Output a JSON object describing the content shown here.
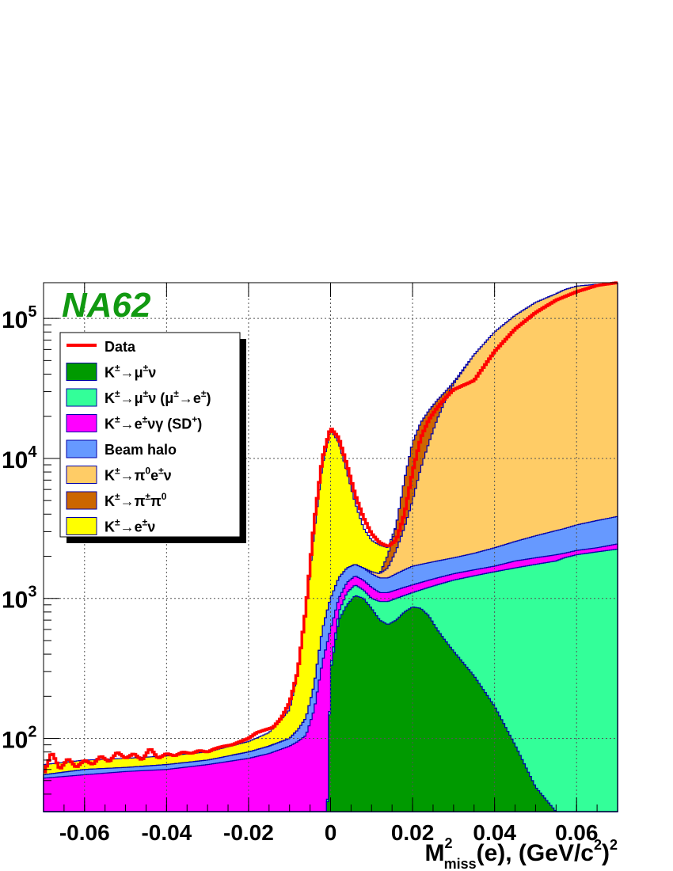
{
  "experiment": "NA62",
  "colors": {
    "data": "#ff0000",
    "kmu2": "#009a00",
    "kmu2_decay": "#33ff99",
    "ke2g_sd": "#ff00ff",
    "halo": "#6699ff",
    "ke3": "#ffcc66",
    "k2pi": "#cc6600",
    "ke2": "#ffff00",
    "outline": "#0000aa",
    "experiment": "#119911"
  },
  "chart_data": {
    "type": "area",
    "x_axis": {
      "label_parts": [
        "M",
        "2",
        "miss",
        "(e), (GeV/c",
        "2",
        ")",
        "2"
      ],
      "range": [
        -0.07,
        0.07
      ],
      "ticks": [
        "-0.06",
        "-0.04",
        "-0.02",
        "0",
        "0.02",
        "0.04",
        "0.06"
      ],
      "tick_values": [
        -0.06,
        -0.04,
        -0.02,
        0,
        0.02,
        0.04,
        0.06
      ]
    },
    "y_axis": {
      "scale": "log",
      "range": [
        30,
        180000
      ],
      "ticks": [
        {
          "value": 100,
          "base": "10",
          "exp": "2"
        },
        {
          "value": 1000,
          "base": "10",
          "exp": "3"
        },
        {
          "value": 10000,
          "base": "10",
          "exp": "4"
        },
        {
          "value": 100000,
          "base": "10",
          "exp": "5"
        }
      ]
    },
    "grid": true,
    "legend_position": "top-left",
    "legend": [
      {
        "key": "data",
        "type": "line",
        "parts": [
          {
            "t": "Data"
          }
        ]
      },
      {
        "key": "kmu2",
        "type": "fill",
        "parts": [
          {
            "t": "K"
          },
          {
            "t": "±",
            "s": "sup"
          },
          {
            "t": "→μ"
          },
          {
            "t": "±",
            "s": "sup"
          },
          {
            "t": "ν"
          }
        ]
      },
      {
        "key": "kmu2_decay",
        "type": "fill",
        "parts": [
          {
            "t": "K"
          },
          {
            "t": "±",
            "s": "sup"
          },
          {
            "t": "→μ"
          },
          {
            "t": "±",
            "s": "sup"
          },
          {
            "t": "ν (μ"
          },
          {
            "t": "±",
            "s": "sup"
          },
          {
            "t": "→e"
          },
          {
            "t": "±",
            "s": "sup"
          },
          {
            "t": ")"
          }
        ]
      },
      {
        "key": "ke2g_sd",
        "type": "fill",
        "parts": [
          {
            "t": "K"
          },
          {
            "t": "±",
            "s": "sup"
          },
          {
            "t": "→e"
          },
          {
            "t": "±",
            "s": "sup"
          },
          {
            "t": "νγ (SD"
          },
          {
            "t": "+",
            "s": "sup"
          },
          {
            "t": ")"
          }
        ]
      },
      {
        "key": "halo",
        "type": "fill",
        "parts": [
          {
            "t": "Beam halo"
          }
        ]
      },
      {
        "key": "ke3",
        "type": "fill",
        "parts": [
          {
            "t": "K"
          },
          {
            "t": "±",
            "s": "sup"
          },
          {
            "t": "→π"
          },
          {
            "t": "0",
            "s": "sup"
          },
          {
            "t": "e"
          },
          {
            "t": "±",
            "s": "sup"
          },
          {
            "t": "ν"
          }
        ]
      },
      {
        "key": "k2pi",
        "type": "fill",
        "parts": [
          {
            "t": "K"
          },
          {
            "t": "±",
            "s": "sup"
          },
          {
            "t": "→π"
          },
          {
            "t": "±",
            "s": "sup"
          },
          {
            "t": "π"
          },
          {
            "t": "0",
            "s": "sup"
          }
        ]
      },
      {
        "key": "ke2",
        "type": "fill",
        "parts": [
          {
            "t": "K"
          },
          {
            "t": "±",
            "s": "sup"
          },
          {
            "t": "→e"
          },
          {
            "t": "±",
            "s": "sup"
          },
          {
            "t": "ν"
          }
        ]
      }
    ],
    "stack_order_bottom_to_top": [
      "kmu2",
      "kmu2_decay",
      "ke2g_sd",
      "halo",
      "ke3",
      "k2pi",
      "ke2"
    ],
    "cumulative_levels": {
      "x": [
        -0.07,
        -0.06,
        -0.05,
        -0.04,
        -0.03,
        -0.02,
        -0.015,
        -0.01,
        -0.008,
        -0.006,
        -0.004,
        -0.002,
        0.0,
        0.002,
        0.004,
        0.006,
        0.008,
        0.01,
        0.012,
        0.014,
        0.016,
        0.018,
        0.02,
        0.022,
        0.024,
        0.026,
        0.028,
        0.03,
        0.035,
        0.04,
        0.045,
        0.05,
        0.055,
        0.057,
        0.06,
        0.065,
        0.07
      ],
      "kmu2": [
        0,
        0,
        0,
        0,
        0,
        0,
        0,
        0,
        0,
        0,
        0,
        0,
        300,
        700,
        900,
        1050,
        1000,
        850,
        700,
        650,
        700,
        800,
        870,
        850,
        750,
        600,
        500,
        420,
        280,
        170,
        90,
        45,
        30,
        30,
        30,
        30,
        30
      ],
      "kmu2_decay": [
        0,
        0,
        0,
        0,
        0,
        0,
        0,
        0,
        0,
        0,
        0,
        0,
        320,
        800,
        1100,
        1250,
        1150,
        1000,
        950,
        950,
        1000,
        1050,
        1100,
        1150,
        1200,
        1250,
        1300,
        1350,
        1450,
        1550,
        1650,
        1750,
        1850,
        1950,
        2050,
        2150,
        2250
      ],
      "ke2g_sd": [
        52,
        55,
        58,
        60,
        65,
        72,
        78,
        88,
        95,
        105,
        160,
        350,
        600,
        1000,
        1300,
        1450,
        1350,
        1200,
        1100,
        1100,
        1150,
        1200,
        1250,
        1300,
        1350,
        1400,
        1450,
        1500,
        1600,
        1700,
        1850,
        1950,
        2050,
        2100,
        2200,
        2300,
        2450
      ],
      "halo": [
        55,
        60,
        62,
        65,
        70,
        80,
        88,
        100,
        115,
        140,
        240,
        600,
        1000,
        1400,
        1650,
        1750,
        1650,
        1500,
        1400,
        1400,
        1500,
        1600,
        1700,
        1750,
        1800,
        1850,
        1900,
        1950,
        2100,
        2300,
        2550,
        2800,
        3050,
        3150,
        3350,
        3600,
        3850
      ],
      "ke3": [
        55,
        60,
        62,
        65,
        70,
        80,
        88,
        100,
        115,
        140,
        240,
        600,
        1000,
        1400,
        1650,
        1750,
        1650,
        1550,
        1500,
        1650,
        2200,
        3200,
        5000,
        8500,
        13000,
        19000,
        26000,
        34000,
        55000,
        80000,
        105000,
        130000,
        150000,
        160000,
        170000,
        175000,
        178000
      ],
      "k2pi": [
        55,
        60,
        62,
        65,
        70,
        80,
        88,
        100,
        115,
        140,
        240,
        600,
        1000,
        1400,
        1650,
        1750,
        1650,
        1550,
        1500,
        2050,
        3300,
        7000,
        13000,
        18000,
        22000,
        26000,
        30000,
        35000,
        55000,
        80000,
        105000,
        130000,
        150000,
        160000,
        170000,
        175000,
        178000
      ],
      "ke2": [
        65,
        70,
        72,
        75,
        80,
        95,
        110,
        160,
        300,
        850,
        3000,
        9000,
        16000,
        13000,
        8000,
        4800,
        3200,
        2600,
        2400,
        2300,
        3300,
        7000,
        13000,
        18000,
        22000,
        26000,
        30000,
        35000,
        55000,
        80000,
        105000,
        130000,
        150000,
        160000,
        170000,
        175000,
        178000
      ]
    },
    "data_series": {
      "x": [
        -0.07,
        -0.068,
        -0.066,
        -0.064,
        -0.062,
        -0.06,
        -0.058,
        -0.056,
        -0.054,
        -0.052,
        -0.05,
        -0.048,
        -0.046,
        -0.044,
        -0.042,
        -0.04,
        -0.038,
        -0.036,
        -0.034,
        -0.032,
        -0.03,
        -0.028,
        -0.026,
        -0.024,
        -0.022,
        -0.02,
        -0.018,
        -0.016,
        -0.014,
        -0.012,
        -0.01,
        -0.008,
        -0.006,
        -0.004,
        -0.002,
        0.0,
        0.002,
        0.004,
        0.006,
        0.008,
        0.01,
        0.012,
        0.014,
        0.016,
        0.018,
        0.02,
        0.022,
        0.024,
        0.026,
        0.028,
        0.03,
        0.035,
        0.04,
        0.045,
        0.05,
        0.055,
        0.06,
        0.065,
        0.07
      ],
      "y": [
        55,
        80,
        60,
        72,
        62,
        70,
        65,
        75,
        68,
        80,
        72,
        78,
        70,
        85,
        72,
        78,
        75,
        80,
        78,
        82,
        80,
        85,
        88,
        90,
        95,
        100,
        110,
        115,
        120,
        140,
        180,
        300,
        850,
        3500,
        10000,
        16500,
        14000,
        9000,
        5500,
        3800,
        2900,
        2500,
        2350,
        2600,
        4000,
        8000,
        14000,
        19000,
        23000,
        27000,
        31000,
        36000,
        58000,
        84000,
        110000,
        135000,
        155000,
        172000,
        180000
      ]
    }
  }
}
